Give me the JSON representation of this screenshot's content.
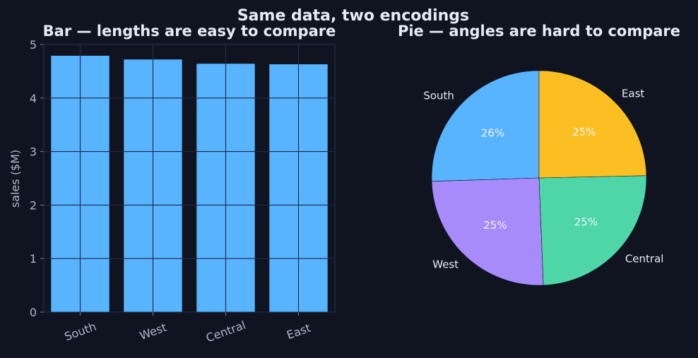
{
  "figure": {
    "title": "Same data, two encodings"
  },
  "chart_data": [
    {
      "type": "bar",
      "title": "Bar — lengths are easy to compare",
      "categories": [
        "South",
        "West",
        "Central",
        "East"
      ],
      "values": [
        4.79,
        4.72,
        4.64,
        4.63
      ],
      "xlabel": "",
      "ylabel": "sales ($M)",
      "ylim": [
        0,
        5
      ],
      "yticks": [
        "0",
        "1",
        "2",
        "3",
        "4",
        "5"
      ],
      "grid": true,
      "color": "#58b4ff"
    },
    {
      "type": "pie",
      "title": "Pie — angles are hard to compare",
      "labels": [
        "South",
        "West",
        "Central",
        "East"
      ],
      "values": [
        4.79,
        4.72,
        4.64,
        4.63
      ],
      "percent_labels": [
        "26%",
        "25%",
        "25%",
        "25%"
      ],
      "colors": [
        "#58b4ff",
        "#a78bfa",
        "#4fd6a8",
        "#fbbf24"
      ]
    }
  ]
}
